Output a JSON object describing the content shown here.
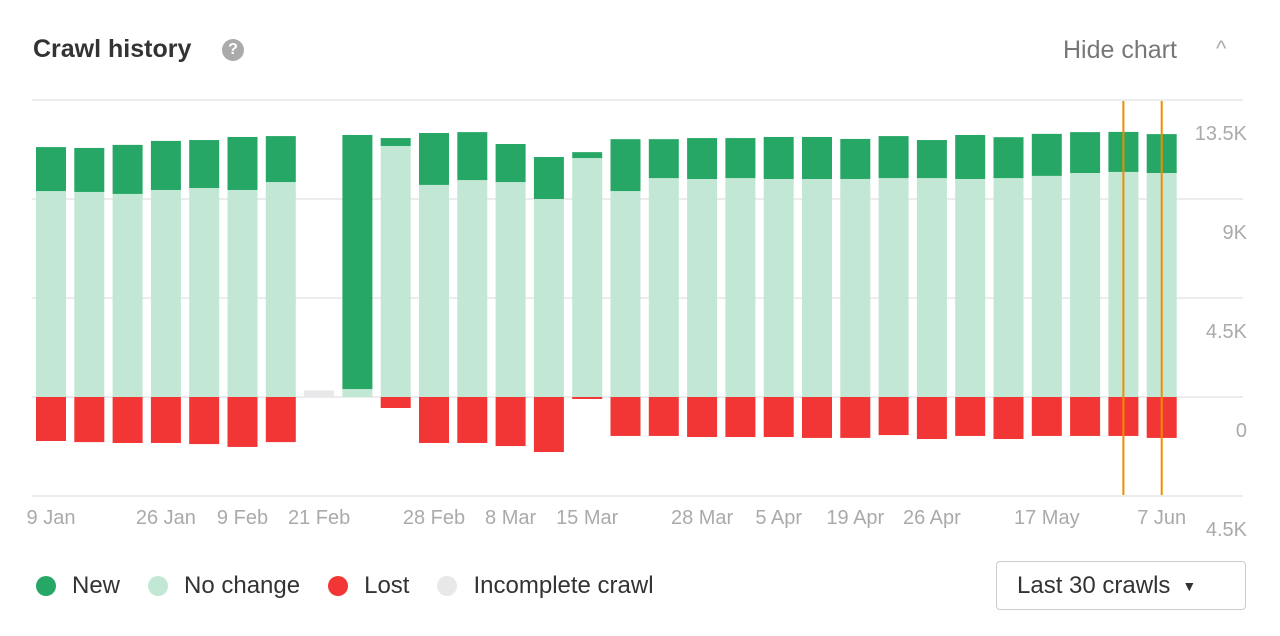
{
  "header": {
    "title": "Crawl history",
    "help_icon": "question-circle-icon",
    "hide_label": "Hide chart",
    "collapse_icon": "chevron-up-icon"
  },
  "legend": [
    {
      "label": "New",
      "color": "#27a765"
    },
    {
      "label": "No change",
      "color": "#c2e8d5"
    },
    {
      "label": "Lost",
      "color": "#f23535"
    },
    {
      "label": "Incomplete crawl",
      "color": "#e8e8ea"
    }
  ],
  "range_select": {
    "value": "Last 30 crawls",
    "icon": "caret-down-icon"
  },
  "chart_data": {
    "type": "bar",
    "stacked": true,
    "ylim": [
      -4.5,
      13.5
    ],
    "yticks": [
      {
        "value": 13.5,
        "label": "13.5K"
      },
      {
        "value": 9,
        "label": "9K"
      },
      {
        "value": 4.5,
        "label": "4.5K"
      },
      {
        "value": 0,
        "label": "0"
      },
      {
        "value": -4.5,
        "label": "4.5K"
      }
    ],
    "grid": true,
    "legend_placement": "bottom-left",
    "unit": "K",
    "xticks": [
      {
        "crawl": 1,
        "label": "9 Jan"
      },
      {
        "crawl": 4,
        "label": "26 Jan"
      },
      {
        "crawl": 6,
        "label": "9 Feb"
      },
      {
        "crawl": 8,
        "label": "21 Feb"
      },
      {
        "crawl": 11,
        "label": "28 Feb"
      },
      {
        "crawl": 13,
        "label": "8 Mar"
      },
      {
        "crawl": 15,
        "label": "15 Mar"
      },
      {
        "crawl": 18,
        "label": "28 Mar"
      },
      {
        "crawl": 20,
        "label": "5 Apr"
      },
      {
        "crawl": 22,
        "label": "19 Apr"
      },
      {
        "crawl": 24,
        "label": "26 Apr"
      },
      {
        "crawl": 27,
        "label": "17 May"
      },
      {
        "crawl": 30,
        "label": "7 Jun"
      }
    ],
    "series": [
      {
        "name": "No change",
        "color": "#c2e8d5",
        "values": [
          9.36,
          9.32,
          9.23,
          9.41,
          9.5,
          9.41,
          9.77,
          0,
          0.36,
          11.41,
          9.64,
          9.86,
          9.77,
          9.0,
          10.86,
          9.36,
          9.95,
          9.91,
          9.95,
          9.91,
          9.91,
          9.91,
          9.95,
          9.95,
          9.91,
          9.95,
          10.05,
          10.18,
          10.23,
          10.18
        ]
      },
      {
        "name": "New",
        "color": "#27a765",
        "values": [
          2.0,
          2.0,
          2.23,
          2.23,
          2.18,
          2.41,
          2.09,
          0,
          11.55,
          0.36,
          2.36,
          2.18,
          1.73,
          1.91,
          0.27,
          2.36,
          1.77,
          1.86,
          1.82,
          1.91,
          1.91,
          1.82,
          1.91,
          1.73,
          2.0,
          1.86,
          1.91,
          1.86,
          1.82,
          1.77
        ]
      },
      {
        "name": "Lost",
        "color": "#f23535",
        "values": [
          -2.0,
          -2.05,
          -2.09,
          -2.09,
          -2.14,
          -2.27,
          -2.05,
          0,
          0,
          -0.5,
          -2.09,
          -2.09,
          -2.23,
          -2.5,
          -0.09,
          -1.77,
          -1.77,
          -1.82,
          -1.82,
          -1.82,
          -1.86,
          -1.86,
          -1.73,
          -1.91,
          -1.77,
          -1.91,
          -1.77,
          -1.77,
          -1.77,
          -1.86
        ]
      },
      {
        "name": "Incomplete crawl",
        "color": "#e8e8ea",
        "values": [
          0,
          0,
          0,
          0,
          0,
          0,
          0,
          0.3,
          0,
          0,
          0,
          0,
          0,
          0,
          0,
          0,
          0,
          0,
          0,
          0,
          0,
          0,
          0,
          0,
          0,
          0,
          0,
          0,
          0,
          0
        ]
      }
    ],
    "markers": {
      "crawls": [
        29,
        30
      ],
      "color": "#f08c00"
    }
  }
}
